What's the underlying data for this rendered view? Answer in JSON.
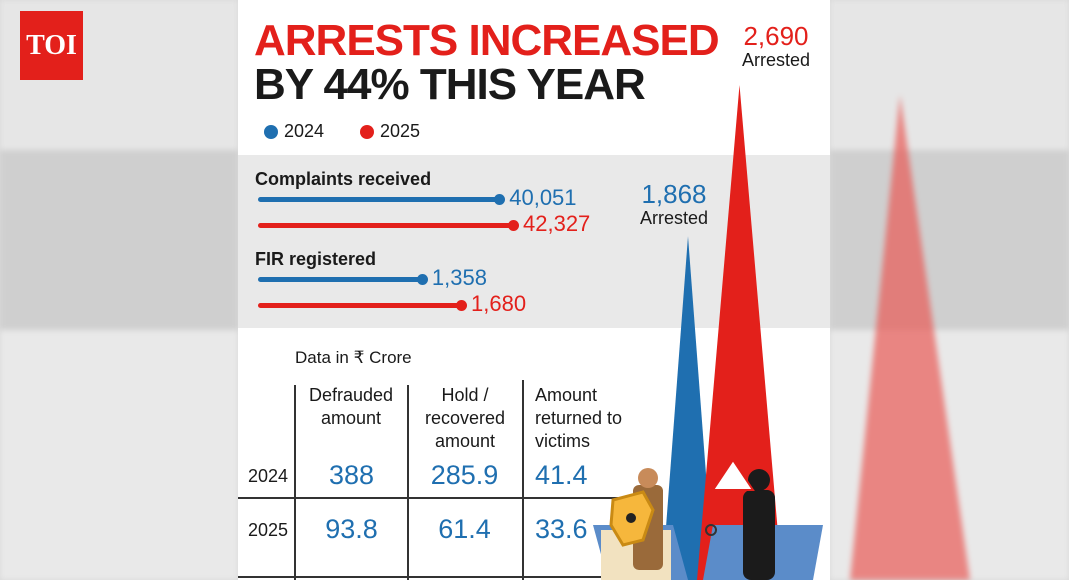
{
  "brand": {
    "logo": "TOI",
    "color": "#e3201b"
  },
  "title": {
    "line1": "ARRESTS INCREASED",
    "line2": "BY 44% THIS YEAR"
  },
  "colors": {
    "2024": "#1f6fb0",
    "2025": "#e3201b"
  },
  "chart_data": [
    {
      "type": "bar",
      "orientation": "horizontal",
      "legend": [
        "2024",
        "2025"
      ],
      "categories": [
        "Complaints received",
        "FIR registered"
      ],
      "series": [
        {
          "name": "2024",
          "values": [
            40051,
            1358
          ],
          "labels": [
            "40,051",
            "1,358"
          ]
        },
        {
          "name": "2025",
          "values": [
            42327,
            1680
          ],
          "labels": [
            "42,327",
            "1,680"
          ]
        }
      ]
    },
    {
      "type": "bar",
      "style": "spike",
      "categories": [
        "2024",
        "2025"
      ],
      "values": [
        1868,
        2690
      ],
      "labels": [
        "1,868",
        "2,690"
      ],
      "unit_label": "Arrested"
    },
    {
      "type": "table",
      "note": "Data in ₹ Crore",
      "columns": [
        "Defrauded amount",
        "Hold / recovered amount",
        "Amount returned to victims"
      ],
      "column_lines": [
        [
          "Defrauded",
          "amount"
        ],
        [
          "Hold /",
          "recovered",
          "amount"
        ],
        [
          "Amount",
          "returned to",
          "victims"
        ]
      ],
      "rows": [
        {
          "year": "2024",
          "values": [
            "388",
            "285.9",
            "41.4"
          ]
        },
        {
          "year": "2025",
          "values": [
            "93.8",
            "61.4",
            "33.6"
          ]
        }
      ]
    }
  ]
}
